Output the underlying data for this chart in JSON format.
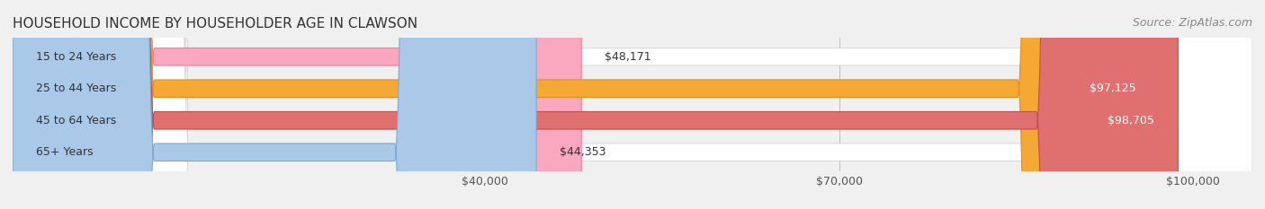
{
  "title": "HOUSEHOLD INCOME BY HOUSEHOLDER AGE IN CLAWSON",
  "source": "Source: ZipAtlas.com",
  "categories": [
    "15 to 24 Years",
    "25 to 44 Years",
    "45 to 64 Years",
    "65+ Years"
  ],
  "values": [
    48171,
    97125,
    98705,
    44353
  ],
  "bar_colors": [
    "#f9a8c0",
    "#f5a833",
    "#e07070",
    "#aac8e8"
  ],
  "bar_edge_colors": [
    "#f080a0",
    "#e09020",
    "#c05050",
    "#80a8d0"
  ],
  "label_colors": [
    "#333333",
    "#ffffff",
    "#ffffff",
    "#333333"
  ],
  "value_labels": [
    "$48,171",
    "$97,125",
    "$98,705",
    "$44,353"
  ],
  "x_ticks": [
    40000,
    70000,
    100000
  ],
  "x_tick_labels": [
    "$40,000",
    "$70,000",
    "$100,000"
  ],
  "x_min": 0,
  "x_max": 105000,
  "background_color": "#f0f0f0",
  "bar_bg_color": "#f0f0f0",
  "title_fontsize": 11,
  "source_fontsize": 9,
  "tick_fontsize": 9,
  "label_fontsize": 9,
  "value_fontsize": 9
}
